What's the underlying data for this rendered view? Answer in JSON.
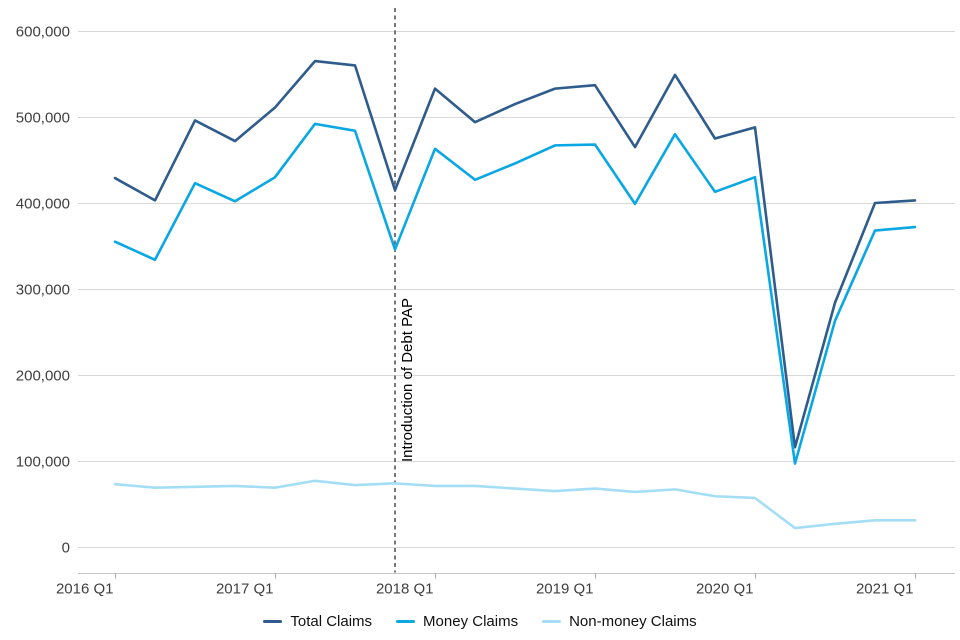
{
  "chart_data": {
    "type": "line",
    "title": "",
    "xlabel": "",
    "ylabel": "",
    "ylim": [
      0,
      620000
    ],
    "grid": "horizontal-only",
    "legend_position": "bottom-center",
    "quarters": [
      "2016 Q1",
      "2016 Q2",
      "2016 Q3",
      "2016 Q4",
      "2017 Q1",
      "2017 Q2",
      "2017 Q3",
      "2017 Q4",
      "2018 Q1",
      "2018 Q2",
      "2018 Q3",
      "2018 Q4",
      "2019 Q1",
      "2019 Q2",
      "2019 Q3",
      "2019 Q4",
      "2020 Q1",
      "2020 Q2",
      "2020 Q3",
      "2020 Q4",
      "2021 Q1"
    ],
    "x_tick_labels": [
      "2016 Q1",
      "2017 Q1",
      "2018 Q1",
      "2019 Q1",
      "2020 Q1",
      "2021 Q1"
    ],
    "y_ticks": [
      {
        "value": 0,
        "label": "0"
      },
      {
        "value": 100000,
        "label": "100,000"
      },
      {
        "value": 200000,
        "label": "200,000"
      },
      {
        "value": 300000,
        "label": "300,000"
      },
      {
        "value": 400000,
        "label": "400,000"
      },
      {
        "value": 500000,
        "label": "500,000"
      },
      {
        "value": 600000,
        "label": "600,000"
      }
    ],
    "series": [
      {
        "name": "Total Claims",
        "color": "#2f5c8c",
        "values": [
          429000,
          403000,
          496000,
          472000,
          511000,
          565000,
          560000,
          415000,
          533000,
          494000,
          515000,
          533000,
          537000,
          465000,
          549000,
          475000,
          488000,
          116000,
          284000,
          400000,
          403000
        ]
      },
      {
        "name": "Money Claims",
        "color": "#09a7e3",
        "values": [
          355000,
          334000,
          423000,
          402000,
          430000,
          492000,
          484000,
          346000,
          463000,
          427000,
          446000,
          467000,
          468000,
          399000,
          480000,
          413000,
          430000,
          97000,
          263000,
          368000,
          372000
        ]
      },
      {
        "name": "Non-money Claims",
        "color": "#a4def5",
        "values": [
          73000,
          69000,
          70000,
          71000,
          69000,
          77000,
          72000,
          74000,
          71000,
          71000,
          68000,
          65000,
          68000,
          64000,
          67000,
          59000,
          57000,
          22000,
          27000,
          31000,
          31000
        ]
      }
    ],
    "annotation": {
      "label": "Introduction of Debt PAP",
      "quarter": "2017 Q4",
      "line_color": "#4a4a4a",
      "text_color": "#000000"
    },
    "colors": {
      "gridline": "#d9d9d9",
      "axis_line": "#c6c6c6",
      "tick_mark": "#a6a6a6",
      "tick_label": "#404040"
    }
  }
}
